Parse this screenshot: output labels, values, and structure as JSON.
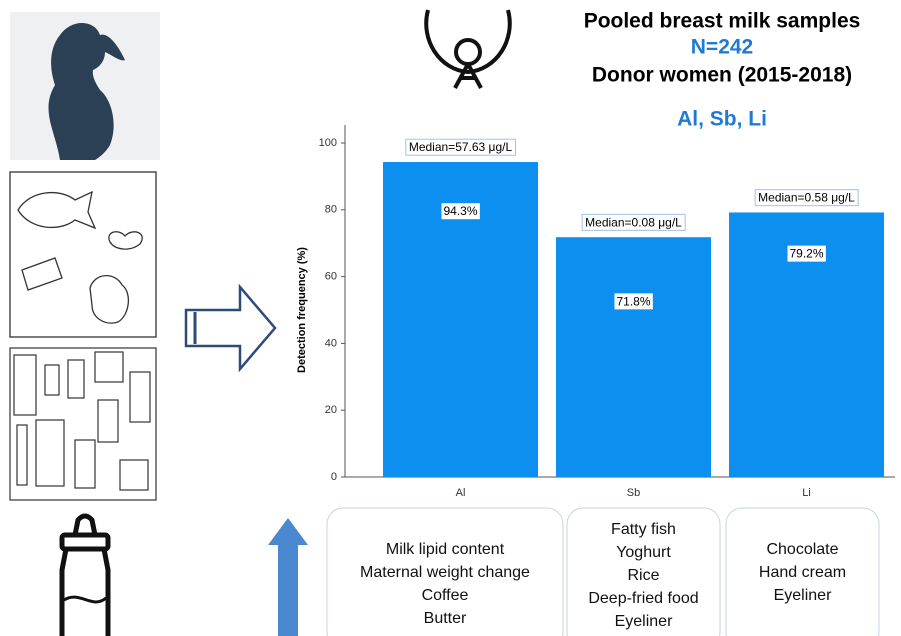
{
  "header": {
    "lines": [
      "Pooled breast milk samples",
      "N=242",
      "Donor women (2015-2018)"
    ],
    "elements": "Al, Sb, Li"
  },
  "chart_data": {
    "type": "bar",
    "ylabel": "Detection frequency (%)",
    "categories": [
      "Al",
      "Sb",
      "Li"
    ],
    "values": [
      94.3,
      71.8,
      79.2
    ],
    "value_labels": [
      "94.3%",
      "71.8%",
      "79.2%"
    ],
    "annotations": [
      "Median=57.63 μg/L",
      "Median=0.08 μg/L",
      "Median=0.58 μg/L"
    ],
    "color": "#0d8fef",
    "ylim": [
      0,
      100
    ],
    "yticks": [
      0,
      20,
      40,
      60,
      80,
      100
    ]
  },
  "predictors": [
    [
      "Milk lipid content",
      "Maternal weight change",
      "Coffee",
      "Butter"
    ],
    [
      "Fatty fish",
      "Yoghurt",
      "Rice",
      "Deep-fried food",
      "Eyeliner"
    ],
    [
      "Chocolate",
      "Hand cream",
      "Eyeliner"
    ]
  ]
}
